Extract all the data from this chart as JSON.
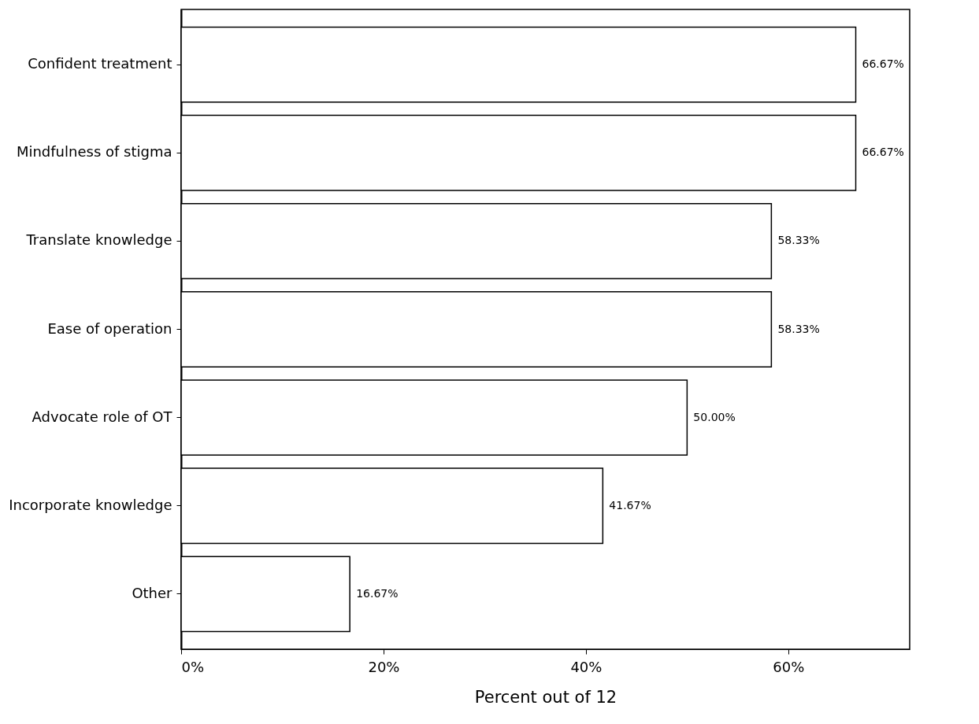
{
  "chart_data": {
    "type": "bar",
    "orientation": "horizontal",
    "xlabel": "Percent out of 12",
    "categories": [
      "Confident treatment",
      "Mindfulness of stigma",
      "Translate knowledge",
      "Ease of operation",
      "Advocate role of OT",
      "Incorporate knowledge",
      "Other"
    ],
    "values": [
      66.67,
      66.67,
      58.33,
      58.33,
      50.0,
      41.67,
      16.67
    ],
    "value_labels": [
      "66.67%",
      "66.67%",
      "58.33%",
      "58.33%",
      "50.00%",
      "41.67%",
      "16.67%"
    ],
    "color": "#ffffff",
    "xlim": [
      0,
      72
    ],
    "xticks": [
      {
        "value": 0,
        "label": "0%"
      },
      {
        "value": 20,
        "label": "20%"
      },
      {
        "value": 40,
        "label": "40%"
      },
      {
        "value": 60,
        "label": "60%"
      }
    ],
    "grid": false
  }
}
